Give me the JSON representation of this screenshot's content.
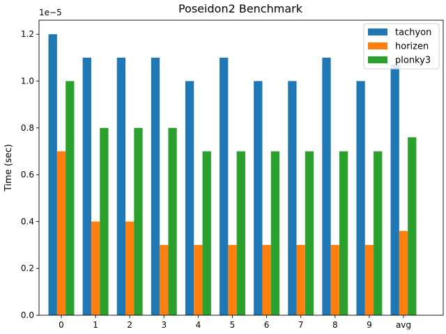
{
  "chart_data": {
    "type": "bar",
    "title": "Poseidon2 Benchmark",
    "xlabel": "",
    "ylabel": "Time (sec)",
    "y_exponent_label": "1e−5",
    "y_scale": 1e-05,
    "ylim": [
      0,
      1.26e-05
    ],
    "y_ticks": [
      0,
      2e-06,
      4e-06,
      6e-06,
      8e-06,
      1e-05,
      1.2e-05
    ],
    "y_tick_labels": [
      "0.0",
      "0.2",
      "0.4",
      "0.6",
      "0.8",
      "1.0",
      "1.2"
    ],
    "categories": [
      "0",
      "1",
      "2",
      "3",
      "4",
      "5",
      "6",
      "7",
      "8",
      "9",
      "avg"
    ],
    "series": [
      {
        "name": "tachyon",
        "color": "#1f77b4",
        "values": [
          1.2e-05,
          1.1e-05,
          1.1e-05,
          1.1e-05,
          1e-05,
          1.1e-05,
          1e-05,
          1e-05,
          1.1e-05,
          1e-05,
          1.07e-05
        ]
      },
      {
        "name": "horizen",
        "color": "#ff7f0e",
        "values": [
          7e-06,
          4e-06,
          4e-06,
          3e-06,
          3e-06,
          3e-06,
          3e-06,
          3e-06,
          3e-06,
          3e-06,
          3.6e-06
        ]
      },
      {
        "name": "plonky3",
        "color": "#2ca02c",
        "values": [
          1e-05,
          8e-06,
          8e-06,
          8e-06,
          7e-06,
          7e-06,
          7e-06,
          7e-06,
          7e-06,
          7e-06,
          7.6e-06
        ]
      }
    ],
    "legend_position": "top-right",
    "grid": false
  }
}
